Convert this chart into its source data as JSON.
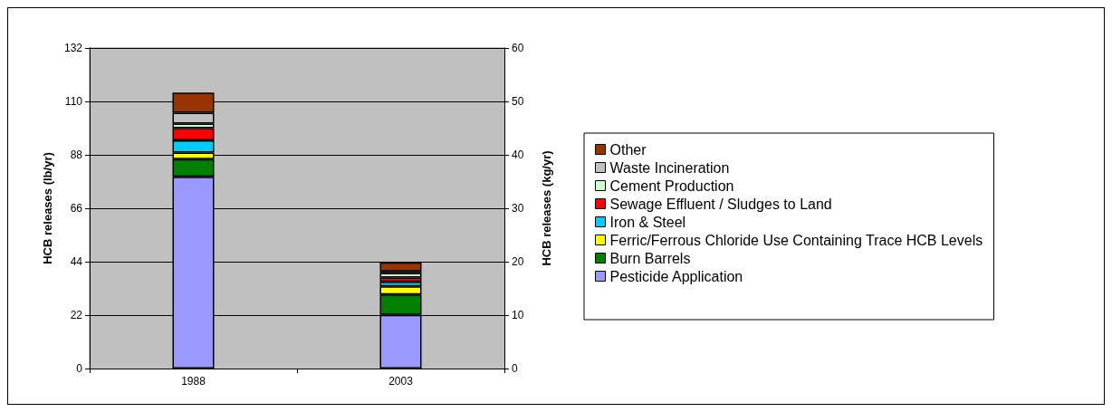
{
  "chart_data": {
    "type": "bar",
    "stacked": true,
    "ylabel": "HCB releases (lb/yr)",
    "y2label": "HCB releases (kg/yr)",
    "categories": [
      "1988",
      "2003"
    ],
    "ylim": [
      0,
      132
    ],
    "yticks": [
      0,
      22,
      44,
      66,
      88,
      110,
      132
    ],
    "y2lim": [
      0,
      60
    ],
    "y2ticks": [
      0,
      10,
      20,
      30,
      40,
      50,
      60
    ],
    "grid": "y",
    "legend": "right",
    "series": [
      {
        "name": "Pesticide Application",
        "color": "#9999ff",
        "values": [
          79,
          22.1
        ]
      },
      {
        "name": "Burn Barrels",
        "color": "#008000",
        "values": [
          7.2,
          8.4
        ]
      },
      {
        "name": "Ferric/Ferrous Chloride Use Containing Trace HCB Levels",
        "color": "#ffff00",
        "values": [
          2.7,
          3.3
        ]
      },
      {
        "name": "Iron & Steel",
        "color": "#00ccff",
        "values": [
          5.1,
          1.9
        ]
      },
      {
        "name": "Sewage Effluent / Sludges to Land",
        "color": "#ff0000",
        "values": [
          5,
          1.8
        ]
      },
      {
        "name": "Cement Production",
        "color": "#ccffcc",
        "values": [
          1.9,
          1.8
        ]
      },
      {
        "name": "Waste Incineration",
        "color": "#c0c0c0",
        "values": [
          4.4,
          0.7
        ]
      },
      {
        "name": "Other",
        "color": "#993300",
        "values": [
          8.3,
          3.7
        ]
      }
    ]
  }
}
